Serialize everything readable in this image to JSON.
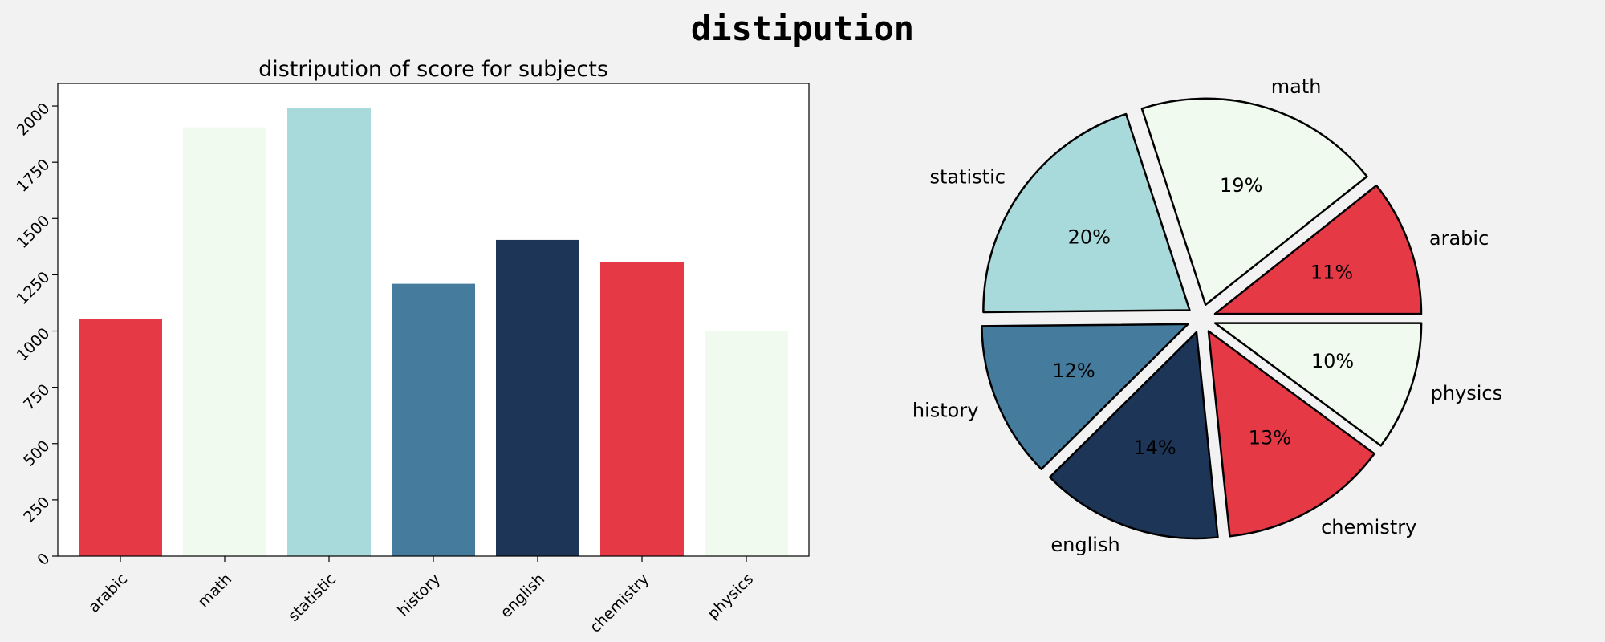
{
  "figure": {
    "suptitle": "distipution",
    "background": "#f2f2f2"
  },
  "chart_data": [
    {
      "type": "bar",
      "title": "distripution of score for subjects",
      "xlabel": "",
      "ylabel": "",
      "categories": [
        "arabic",
        "math",
        "statistic",
        "history",
        "english",
        "chemistry",
        "physics"
      ],
      "values": [
        1055,
        1905,
        1990,
        1210,
        1405,
        1305,
        1000
      ],
      "colors": [
        "#e63946",
        "#f1faee",
        "#a8dadc",
        "#457b9d",
        "#1d3557",
        "#e63946",
        "#f1faee"
      ],
      "ylim": [
        0,
        2100
      ],
      "yticks": [
        0,
        250,
        500,
        750,
        1000,
        1250,
        1500,
        1750,
        2000
      ],
      "grid": false
    },
    {
      "type": "pie",
      "labels": [
        "arabic",
        "math",
        "statistic",
        "history",
        "english",
        "chemistry",
        "physics"
      ],
      "values": [
        1055,
        1905,
        1990,
        1210,
        1405,
        1305,
        1000
      ],
      "percent_labels": [
        "11%",
        "19%",
        "20%",
        "12%",
        "14%",
        "13%",
        "10%"
      ],
      "colors": [
        "#e63946",
        "#f1faee",
        "#a8dadc",
        "#457b9d",
        "#1d3557",
        "#e63946",
        "#f1faee"
      ],
      "exploded": true,
      "edgecolor": "#000000"
    }
  ]
}
